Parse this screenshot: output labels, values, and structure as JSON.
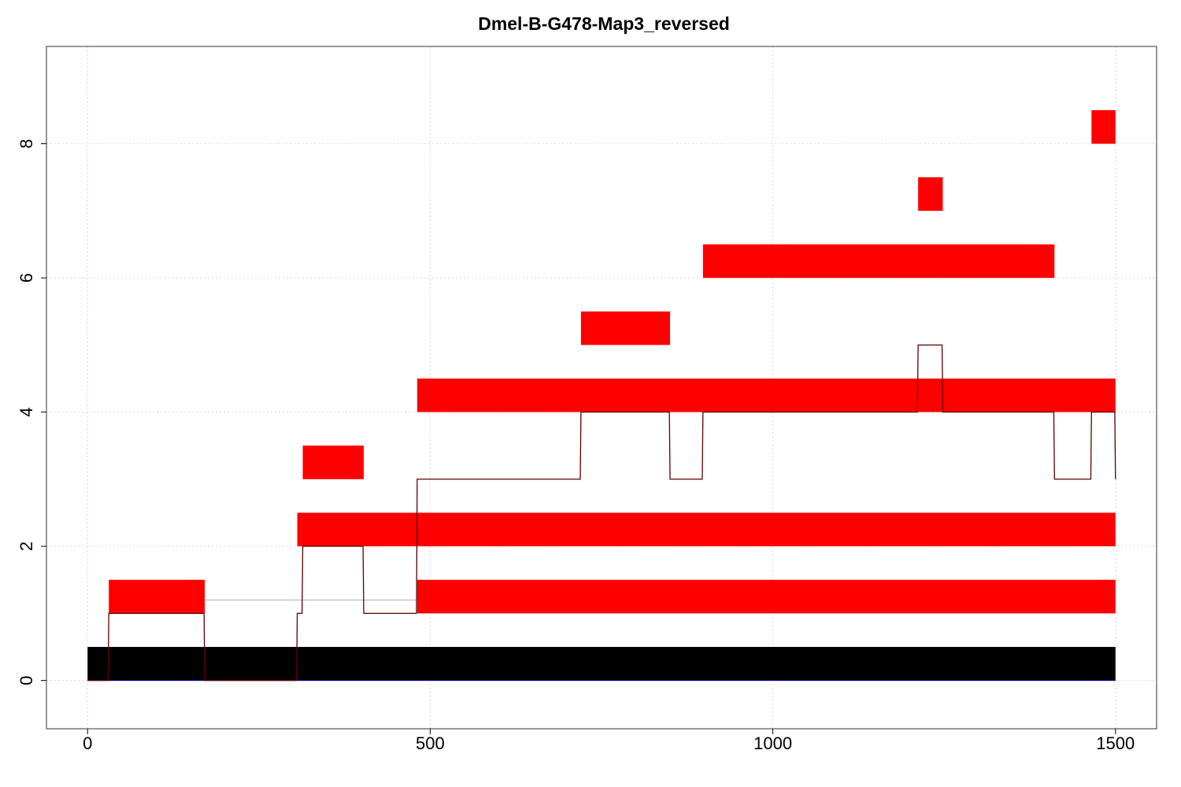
{
  "chart_data": {
    "type": "bar",
    "title": "Dmel-B-G478-Map3_reversed",
    "xlabel": "",
    "ylabel": "",
    "xlim": [
      -60,
      1560
    ],
    "ylim": [
      -0.72,
      9.45
    ],
    "grid": true,
    "legend": "none",
    "x_ticks": [
      0,
      500,
      1000,
      1500
    ],
    "y_ticks": [
      0,
      2,
      4,
      6,
      8
    ],
    "colors": {
      "reference_bar": "#000000",
      "segment": "#ff0000",
      "coverage_line": "#5a0000",
      "connector": "#b0b0b0",
      "baseline": "#0000cc",
      "grid": "#d9d9d9"
    },
    "reference_bar": {
      "x0": 0,
      "x1": 1500,
      "y0": 0,
      "y1": 0.5
    },
    "segments": [
      {
        "x0": 31,
        "x1": 171,
        "y0": 1,
        "y1": 1.5
      },
      {
        "x0": 481,
        "x1": 1500,
        "y0": 1,
        "y1": 1.5
      },
      {
        "x0": 306,
        "x1": 1500,
        "y0": 2,
        "y1": 2.5
      },
      {
        "x0": 314,
        "x1": 403,
        "y0": 3,
        "y1": 3.5
      },
      {
        "x0": 481,
        "x1": 1500,
        "y0": 4,
        "y1": 4.5
      },
      {
        "x0": 720,
        "x1": 850,
        "y0": 5,
        "y1": 5.5
      },
      {
        "x0": 898,
        "x1": 1411,
        "y0": 6,
        "y1": 6.5
      },
      {
        "x0": 1212,
        "x1": 1248,
        "y0": 7,
        "y1": 7.5
      },
      {
        "x0": 1465,
        "x1": 1500,
        "y0": 8,
        "y1": 8.5
      }
    ],
    "connectors": [
      {
        "x0": 171,
        "x1": 481,
        "y": 1.2
      }
    ],
    "coverage": {
      "x": [
        0,
        30,
        31,
        170,
        171,
        305,
        306,
        313,
        314,
        402,
        403,
        480,
        481,
        719,
        720,
        849,
        850,
        897,
        898,
        1211,
        1212,
        1247,
        1248,
        1410,
        1411,
        1464,
        1465,
        1499,
        1500
      ],
      "y": [
        0,
        0,
        1,
        1,
        0,
        0,
        1,
        1,
        2,
        2,
        1,
        1,
        3,
        3,
        4,
        4,
        3,
        3,
        4,
        4,
        5,
        5,
        4,
        4,
        3,
        3,
        4,
        4,
        3
      ]
    }
  }
}
